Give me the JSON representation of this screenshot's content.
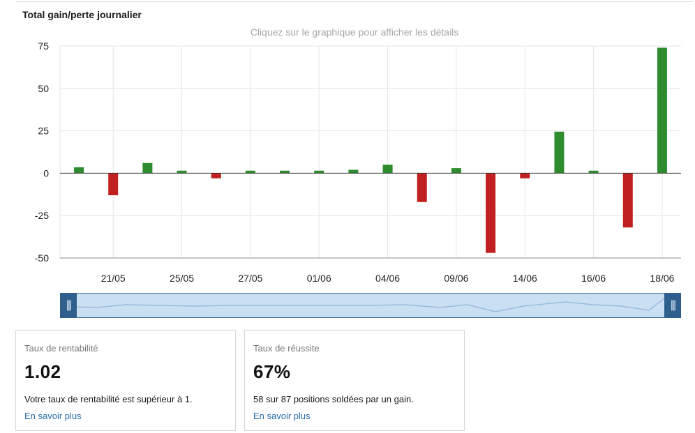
{
  "header": {
    "title": "Total gain/perte journalier",
    "hint": "Cliquez sur le graphique pour afficher les détails"
  },
  "colors": {
    "gain": "#2e8b2e",
    "loss": "#c02020",
    "grid": "#e6e6e6",
    "navigator_fill": "#c9dff2",
    "navigator_handle": "#2f5f8c",
    "link": "#2a6ea8"
  },
  "chart_data": {
    "type": "bar",
    "title": "Total gain/perte journalier",
    "xlabel": "",
    "ylabel": "",
    "ylim": [
      -50,
      75
    ],
    "yticks": [
      75,
      50,
      25,
      0,
      -25,
      -50
    ],
    "xtick_labels": [
      "21/05",
      "25/05",
      "27/05",
      "01/06",
      "04/06",
      "09/06",
      "14/06",
      "16/06",
      "18/06"
    ],
    "values": [
      3.5,
      -13,
      6,
      1.5,
      -3,
      1.5,
      1.5,
      1.5,
      2,
      5,
      -17,
      3,
      -47,
      -3,
      24.5,
      1.5,
      -32,
      74
    ],
    "grid": true,
    "legend": "none"
  },
  "navigator": {
    "left_handle_icon": "grip-icon",
    "right_handle_icon": "grip-icon"
  },
  "cards": [
    {
      "label": "Taux de rentabilité",
      "value": "1.02",
      "description": "Votre taux de rentabilité est supérieur à 1.",
      "link": "En savoir plus"
    },
    {
      "label": "Taux de réussite",
      "value": "67%",
      "description": "58 sur 87 positions soldées par un gain.",
      "link": "En savoir plus"
    }
  ]
}
